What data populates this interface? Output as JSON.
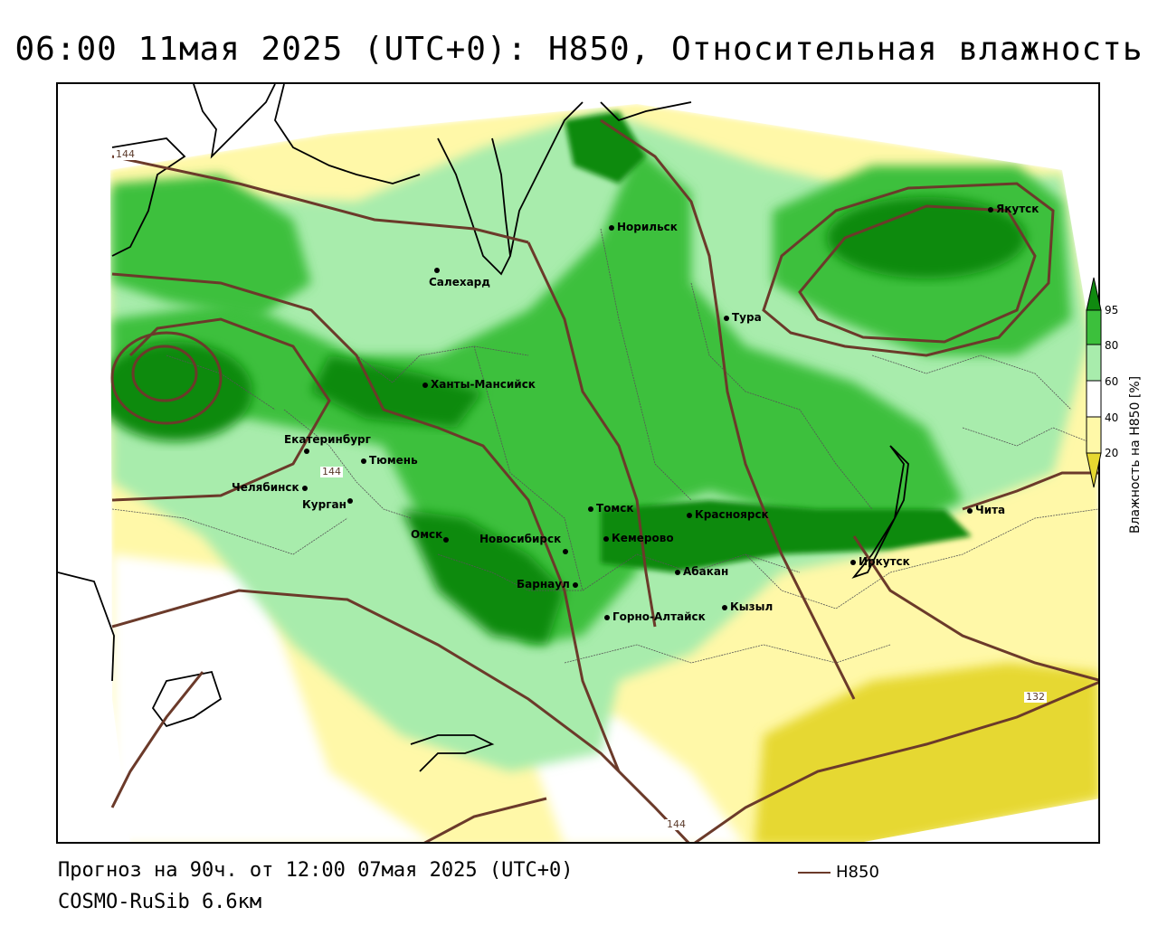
{
  "title": "06:00 11мая 2025 (UTC+0): H850, Относительная влажность",
  "footer": {
    "forecast": "Прогноз на 90ч. от 12:00 07мая 2025 (UTC+0)",
    "model": "COSMO-RuSib 6.6км",
    "line_legend": "H850"
  },
  "legend": {
    "title": "Влажность на H850 [%]",
    "ticks": [
      "95",
      "80",
      "60",
      "40",
      "20"
    ],
    "colors": [
      "#108a10",
      "#3cc03c",
      "#a8ecac",
      "#ffffff",
      "#fff8a8",
      "#e6d830"
    ]
  },
  "contour_labels": [
    "144",
    "144",
    "132",
    "144"
  ],
  "cities": [
    "Якутск",
    "Норильск",
    "Салехард",
    "Тура",
    "Ханты-Мансийск",
    "Екатеринбург",
    "Тюмень",
    "Челябинск",
    "Курган",
    "Томск",
    "Красноярск",
    "Чита",
    "Омск",
    "Новосибирск",
    "Кемерово",
    "Абакан",
    "Иркутск",
    "Барнаул",
    "Кызыл",
    "Горно-Алтайск"
  ],
  "colors": {
    "dark_green": "#108a10",
    "green": "#3cc03c",
    "light_green": "#a8ecac",
    "pale_yellow": "#fff8a8",
    "yellow": "#e6d830",
    "contour": "#6b3a2a"
  }
}
